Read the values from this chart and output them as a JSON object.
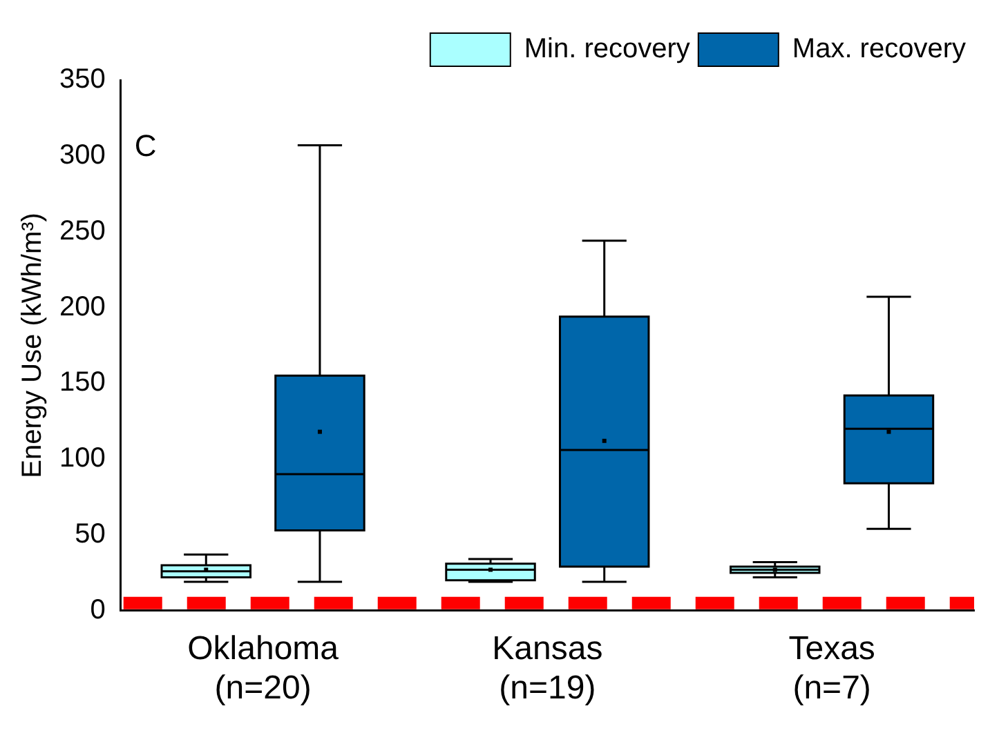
{
  "chart_data": {
    "type": "box",
    "ylabel": "Energy Use (kWh/m³)",
    "annotations": [
      "C"
    ],
    "categories": [
      "Oklahoma (n=20)",
      "Kansas (n=19)",
      "Texas (n=7)"
    ],
    "series": [
      {
        "name": "Min. recovery",
        "color": "#aaffff",
        "boxes": [
          {
            "low": 19,
            "q1": 22,
            "median": 26,
            "q3": 30,
            "high": 37,
            "mean": 27
          },
          {
            "low": 19,
            "q1": 20,
            "median": 27,
            "q3": 31,
            "high": 34,
            "mean": 27
          },
          {
            "low": 22,
            "q1": 25,
            "median": 27,
            "q3": 29,
            "high": 32,
            "mean": 27
          }
        ]
      },
      {
        "name": "Max. recovery",
        "color": "#0066aa",
        "boxes": [
          {
            "low": 19,
            "q1": 53,
            "median": 90,
            "q3": 155,
            "high": 307,
            "mean": 118
          },
          {
            "low": 19,
            "q1": 29,
            "median": 106,
            "q3": 194,
            "high": 244,
            "mean": 112
          },
          {
            "low": 54,
            "q1": 84,
            "median": 120,
            "q3": 142,
            "high": 207,
            "mean": 118
          }
        ]
      }
    ],
    "ylim": [
      0,
      350
    ],
    "yticks": [
      0,
      50,
      100,
      150,
      200,
      250,
      300,
      350
    ],
    "grid": false,
    "legend": "top right",
    "ref_lines": [
      {
        "axis": "y",
        "value": 5,
        "color": "#ff0000",
        "line_style": "dashed"
      }
    ]
  }
}
